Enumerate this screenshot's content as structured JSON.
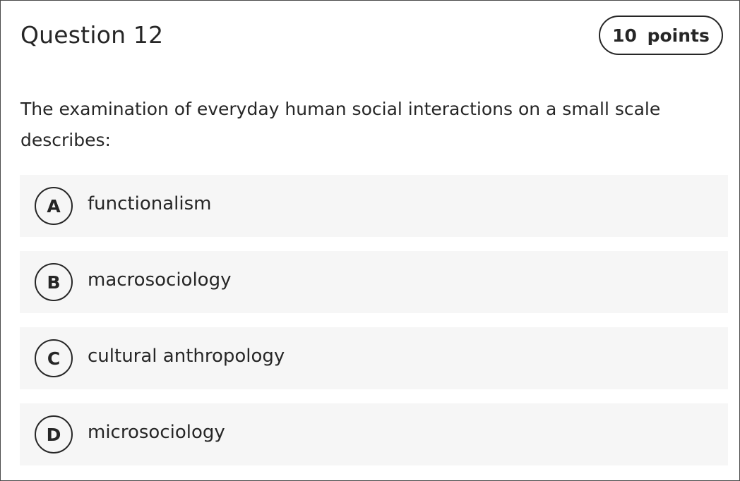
{
  "question": {
    "title": "Question 12",
    "points": "10 points",
    "prompt": "The examination of everyday human social interactions on a small scale describes:",
    "options": [
      {
        "letter": "A",
        "text": "functionalism"
      },
      {
        "letter": "B",
        "text": "macrosociology"
      },
      {
        "letter": "C",
        "text": "cultural anthropology"
      },
      {
        "letter": "D",
        "text": "microsociology"
      }
    ]
  }
}
